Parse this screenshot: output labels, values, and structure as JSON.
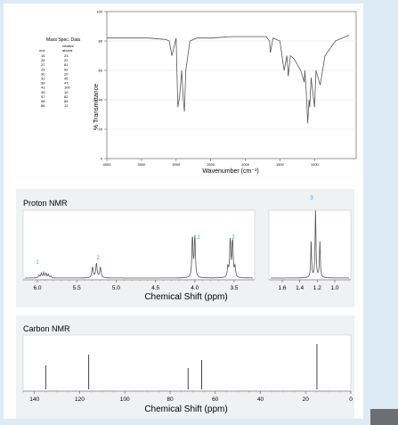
{
  "ir": {
    "mass_spec": {
      "title": "Mass Spec. Data",
      "col_mz": "m/z",
      "col_abund_1": "relative",
      "col_abund_2": "abund.",
      "rows": [
        [
          "15",
          "23"
        ],
        [
          "26",
          "22"
        ],
        [
          "27",
          "81"
        ],
        [
          "29",
          "92"
        ],
        [
          "30",
          "20"
        ],
        [
          "31",
          "45"
        ],
        [
          "39",
          "47"
        ],
        [
          "41",
          "100"
        ],
        [
          "45",
          "10"
        ],
        [
          "57",
          "82"
        ],
        [
          "58",
          "84"
        ],
        [
          "86",
          "12"
        ]
      ]
    },
    "ylabel": "% Transmittance",
    "xlabel": "Wavenumber (cm⁻¹)",
    "x_ticks": [
      "4000",
      "3500",
      "3000",
      "2500",
      "2000",
      "1500",
      "1000"
    ],
    "y_ticks": [
      "100",
      "80",
      "60",
      "40",
      "20",
      "0"
    ]
  },
  "proton_nmr": {
    "title": "Proton NMR",
    "xlabel": "Chemical Shift (ppm)",
    "x_ticks_left": [
      "6.0",
      "5.5",
      "5.0",
      "4.5",
      "4.0",
      "3.5"
    ],
    "x_ticks_right": [
      "1.6",
      "1.4",
      "1.2",
      "1.0"
    ],
    "integrations": [
      "1",
      "2",
      "2",
      "2",
      "3"
    ]
  },
  "carbon_nmr": {
    "title": "Carbon NMR",
    "xlabel": "Chemical Shift (ppm)",
    "x_ticks": [
      "140",
      "120",
      "100",
      "80",
      "60",
      "40",
      "20",
      "0"
    ]
  },
  "colors": {
    "page_bg": "#dcebf5",
    "panel_bg": "#eef2f3",
    "integration": "#3aa0d8",
    "trace": "#555555"
  },
  "chart_data": [
    {
      "type": "line",
      "title": "",
      "xlabel": "Wavenumber (cm⁻¹)",
      "ylabel": "% Transmittance",
      "xlim": [
        4000,
        400
      ],
      "ylim": [
        0,
        100
      ],
      "series": [
        {
          "x": [
            4000,
            3700,
            3400,
            3150,
            3100,
            3060,
            3000,
            2985,
            2975,
            2950,
            2935,
            2920,
            2895,
            2880,
            2860,
            2800,
            2700,
            2500,
            2200,
            2000,
            1840,
            1700,
            1650,
            1640,
            1600,
            1500,
            1460,
            1440,
            1400,
            1380,
            1350,
            1300,
            1200,
            1150,
            1140,
            1120,
            1100,
            1080,
            1070,
            1050,
            1000,
            980,
            920,
            850,
            700,
            500
          ],
          "y": [
            82,
            82,
            82,
            81,
            80,
            70,
            82,
            55,
            35,
            42,
            50,
            60,
            40,
            32,
            60,
            80,
            82,
            82,
            83,
            83,
            83,
            83,
            80,
            72,
            82,
            80,
            66,
            60,
            70,
            56,
            70,
            68,
            60,
            52,
            60,
            45,
            24,
            40,
            35,
            55,
            35,
            60,
            50,
            70,
            80,
            84
          ]
        }
      ]
    },
    {
      "type": "line",
      "title": "Proton NMR",
      "xlabel": "Chemical Shift (ppm)",
      "peaks_ppm": [
        5.92,
        5.28,
        5.18,
        4.02,
        3.52,
        1.22
      ],
      "integrations": [
        1,
        2,
        2,
        2,
        3
      ]
    },
    {
      "type": "line",
      "title": "Carbon NMR",
      "xlabel": "Chemical Shift (ppm)",
      "xlim": [
        145,
        0
      ],
      "peaks_ppm": [
        135,
        116,
        72,
        66,
        15
      ],
      "relative_heights": [
        0.45,
        0.65,
        0.4,
        0.55,
        0.85
      ]
    }
  ]
}
